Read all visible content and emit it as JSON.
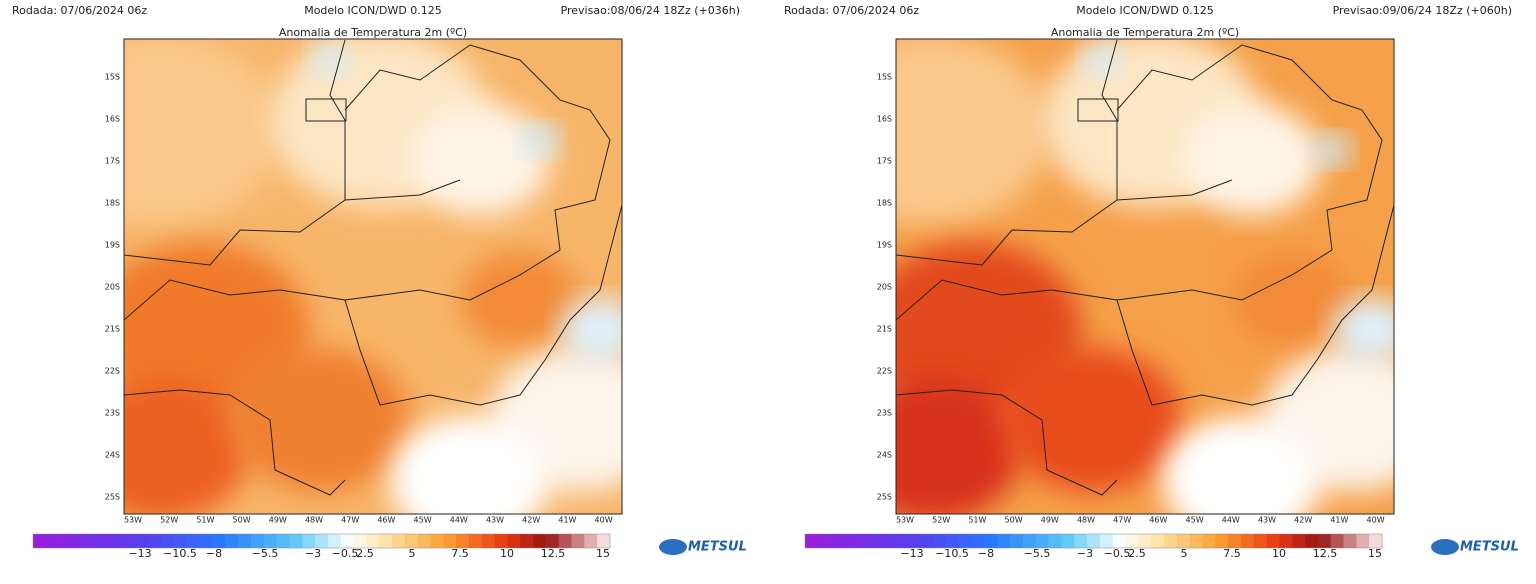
{
  "panels": [
    {
      "run": "Rodada: 07/06/2024 06z",
      "model": "Modelo ICON/DWD 0.125",
      "forecast": "Previsao:08/06/24 18Zz (+036h)",
      "title": "Anomalia de Temperatura 2m (ºC)",
      "lat_labels": [
        "15S",
        "16S",
        "17S",
        "18S",
        "19S",
        "20S",
        "21S",
        "22S",
        "23S",
        "24S",
        "25S"
      ],
      "lon_labels": [
        "53W",
        "52W",
        "51W",
        "50W",
        "49W",
        "48W",
        "47W",
        "46W",
        "45W",
        "44W",
        "43W",
        "42W",
        "41W",
        "40W"
      ],
      "colorbar_labels": [
        "−13",
        "−10.5",
        "−8",
        "−5.5",
        "−3",
        "−0.5",
        "2.5",
        "5",
        "7.5",
        "10",
        "12.5",
        "15"
      ],
      "logo": "METSUL"
    },
    {
      "run": "Rodada: 07/06/2024 06z",
      "model": "Modelo ICON/DWD 0.125",
      "forecast": "Previsao:09/06/24 18Zz (+060h)",
      "title": "Anomalia de Temperatura 2m (ºC)",
      "lat_labels": [
        "15S",
        "16S",
        "17S",
        "18S",
        "19S",
        "20S",
        "21S",
        "22S",
        "23S",
        "24S",
        "25S"
      ],
      "lon_labels": [
        "53W",
        "52W",
        "51W",
        "50W",
        "49W",
        "48W",
        "47W",
        "46W",
        "45W",
        "44W",
        "43W",
        "42W",
        "41W",
        "40W"
      ],
      "colorbar_labels": [
        "−13",
        "−10.5",
        "−8",
        "−5.5",
        "−3",
        "−0.5",
        "2.5",
        "5",
        "7.5",
        "10",
        "12.5",
        "15"
      ],
      "logo": "METSUL"
    }
  ]
}
